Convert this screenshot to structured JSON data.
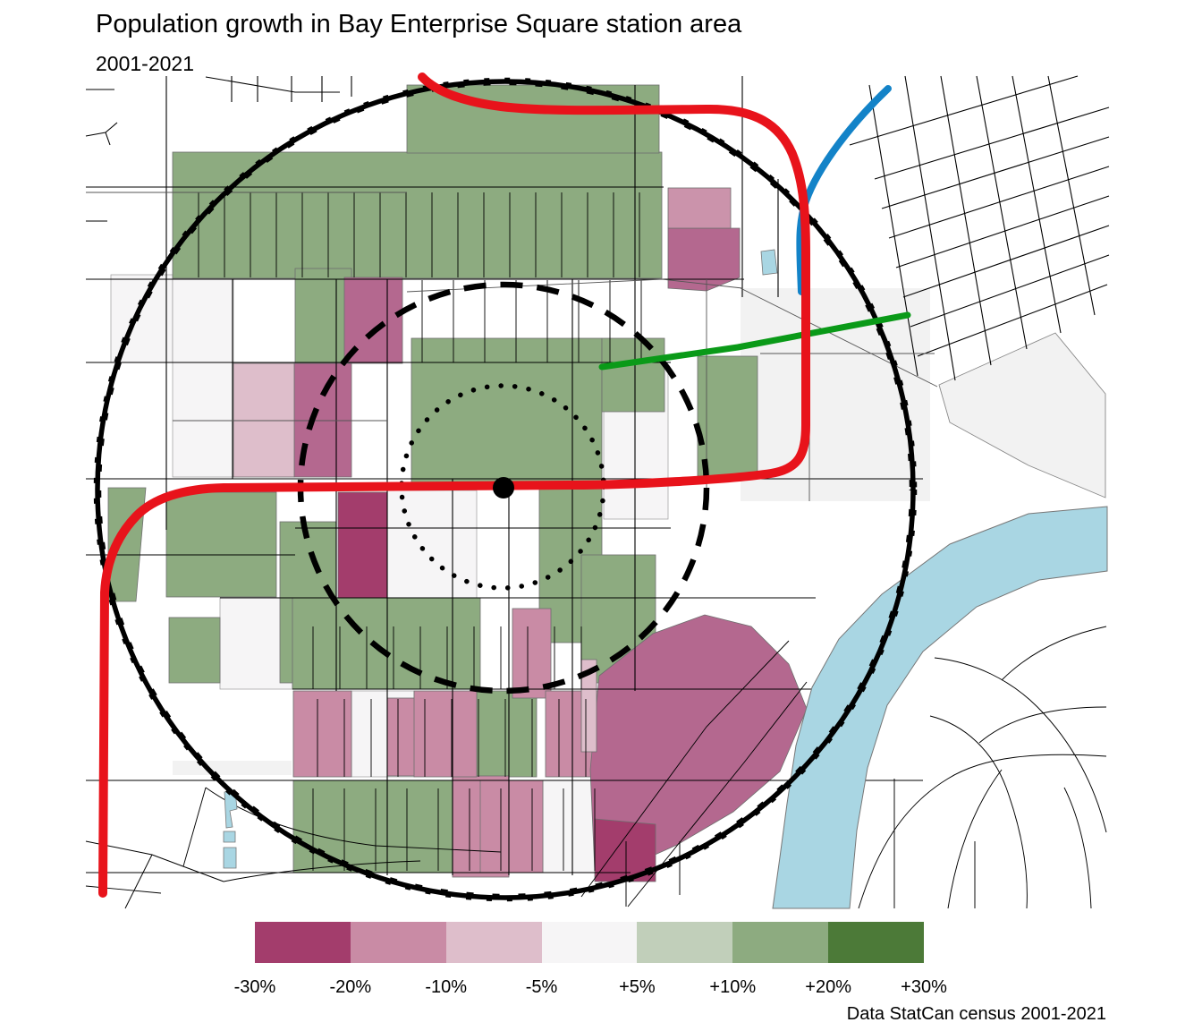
{
  "header": {
    "title": "Population growth in Bay Enterprise Square station area",
    "subtitle": "2001-2021",
    "caption": "Data StatCan census 2001-2021"
  },
  "legend": {
    "labels": [
      "-30%",
      "-20%",
      "-10%",
      "-5%",
      "+5%",
      "+10%",
      "+20%",
      "+30%"
    ],
    "bin_colors": [
      "#a33d6c",
      "#c98ba5",
      "#debecb",
      "#f6f5f6",
      "#c1cfba",
      "#8dab80",
      "#4c7a38"
    ]
  },
  "map": {
    "colors": {
      "water": "#a9d6e3",
      "red_line": "#e8131b",
      "blue_line": "#1383c8",
      "green_line": "#0a9a18",
      "mid_pink_block": "#b4688f",
      "rose_block": "#cb93ab",
      "ring": "#000000",
      "street": "#000000"
    }
  }
}
